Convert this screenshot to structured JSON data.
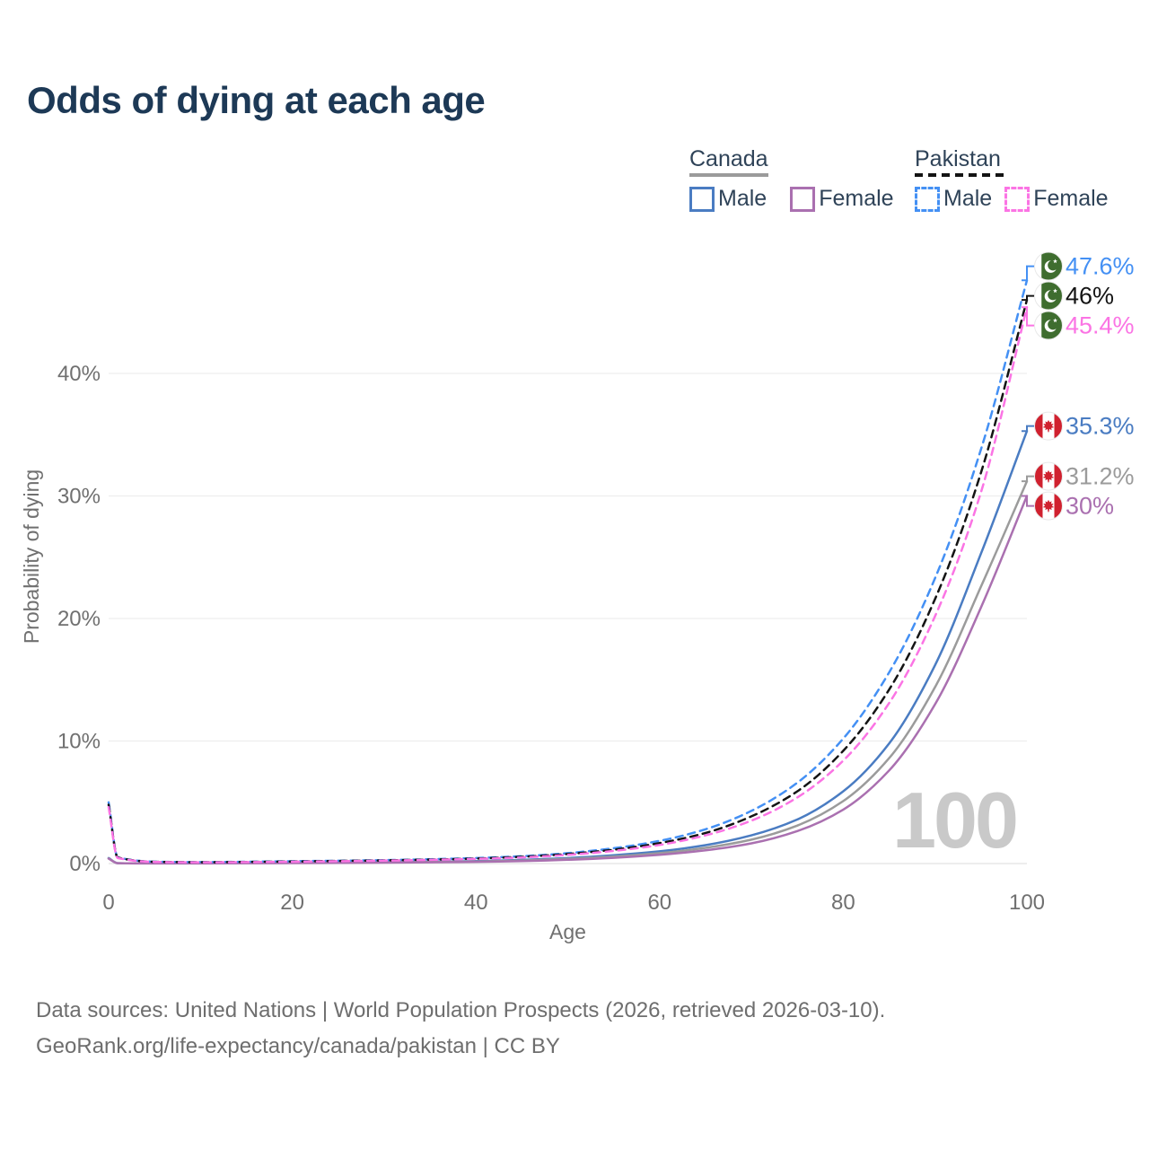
{
  "page": {
    "title": "Odds of dying at each age"
  },
  "legend": {
    "groups": [
      {
        "name": "Canada",
        "line_style": "solid",
        "color": "#9b9b9b",
        "items": [
          {
            "label": "Male",
            "color": "#4a7cc2"
          },
          {
            "label": "Female",
            "color": "#aa70b0"
          }
        ]
      },
      {
        "name": "Pakistan",
        "line_style": "dashed",
        "color": "#141414",
        "items": [
          {
            "label": "Male",
            "color": "#4490f4"
          },
          {
            "label": "Female",
            "color": "#fb74e4"
          }
        ]
      }
    ]
  },
  "chart_data": {
    "type": "line",
    "title": "Odds of dying at each age",
    "xlabel": "Age",
    "ylabel": "Probability of dying",
    "xlim": [
      0,
      100
    ],
    "ylim": [
      0,
      48
    ],
    "x_ticks": [
      0,
      20,
      40,
      60,
      80,
      100
    ],
    "y_ticks": [
      0,
      10,
      20,
      30,
      40
    ],
    "y_tick_suffix": "%",
    "grid": "horizontal",
    "watermark_age": "100",
    "x": [
      0,
      1,
      5,
      10,
      15,
      20,
      25,
      30,
      35,
      40,
      45,
      50,
      55,
      60,
      65,
      70,
      75,
      80,
      85,
      90,
      95,
      100
    ],
    "series": [
      {
        "name": "Pakistan Male",
        "country": "Pakistan",
        "sex": "male",
        "style": "dashed",
        "color": "#4490f4",
        "flag": "pakistan",
        "end_label": "47.6%",
        "values": [
          5.0,
          0.5,
          0.15,
          0.12,
          0.15,
          0.19,
          0.23,
          0.28,
          0.35,
          0.45,
          0.6,
          0.85,
          1.25,
          1.85,
          2.8,
          4.3,
          6.6,
          10.2,
          15.6,
          23.3,
          33.8,
          47.6
        ]
      },
      {
        "name": "Pakistan Both sexes",
        "country": "Pakistan",
        "sex": "both",
        "style": "dashed",
        "color": "#141414",
        "flag": "pakistan",
        "end_label": "46%",
        "values": [
          4.8,
          0.48,
          0.14,
          0.11,
          0.13,
          0.17,
          0.21,
          0.26,
          0.32,
          0.41,
          0.55,
          0.78,
          1.13,
          1.67,
          2.5,
          3.85,
          5.9,
          9.2,
          14.2,
          21.6,
          31.9,
          46.0
        ]
      },
      {
        "name": "Pakistan Female",
        "country": "Pakistan",
        "sex": "female",
        "style": "dashed",
        "color": "#fb74e4",
        "flag": "pakistan",
        "end_label": "45.4%",
        "values": [
          4.6,
          0.45,
          0.13,
          0.1,
          0.12,
          0.15,
          0.19,
          0.24,
          0.3,
          0.38,
          0.5,
          0.71,
          1.03,
          1.52,
          2.3,
          3.5,
          5.4,
          8.4,
          13.1,
          20.2,
          30.3,
          45.4
        ]
      },
      {
        "name": "Canada Male",
        "country": "Canada",
        "sex": "male",
        "style": "solid",
        "color": "#4a7cc2",
        "flag": "canada",
        "end_label": "35.3%",
        "values": [
          0.45,
          0.03,
          0.012,
          0.012,
          0.05,
          0.08,
          0.1,
          0.12,
          0.15,
          0.2,
          0.3,
          0.45,
          0.68,
          1.0,
          1.5,
          2.3,
          3.6,
          5.9,
          9.8,
          16.2,
          25.3,
          35.3
        ]
      },
      {
        "name": "Canada Both sexes",
        "country": "Canada",
        "sex": "both",
        "style": "solid",
        "color": "#9b9b9b",
        "flag": "canada",
        "end_label": "31.2%",
        "values": [
          0.42,
          0.028,
          0.011,
          0.011,
          0.04,
          0.06,
          0.08,
          0.1,
          0.13,
          0.17,
          0.25,
          0.38,
          0.57,
          0.85,
          1.28,
          1.95,
          3.1,
          5.1,
          8.6,
          14.4,
          22.6,
          31.2
        ]
      },
      {
        "name": "Canada Female",
        "country": "Canada",
        "sex": "female",
        "style": "solid",
        "color": "#aa70b0",
        "flag": "canada",
        "end_label": "30%",
        "values": [
          0.4,
          0.026,
          0.01,
          0.01,
          0.03,
          0.04,
          0.05,
          0.07,
          0.1,
          0.14,
          0.2,
          0.31,
          0.47,
          0.71,
          1.08,
          1.65,
          2.65,
          4.4,
          7.6,
          13.0,
          20.9,
          30.0
        ]
      }
    ],
    "flag_colors": {
      "pakistan_green": "#3f6d2f",
      "canada_red": "#d0212f"
    },
    "colors": {
      "gridline": "#ededed",
      "axis_text": "#707070",
      "watermark": "#c9c9c9"
    }
  },
  "footer": {
    "line1": "Data sources: United Nations | World Population Prospects (2026, retrieved 2026-03-10).",
    "line2": "GeoRank.org/life-expectancy/canada/pakistan | CC BY"
  }
}
